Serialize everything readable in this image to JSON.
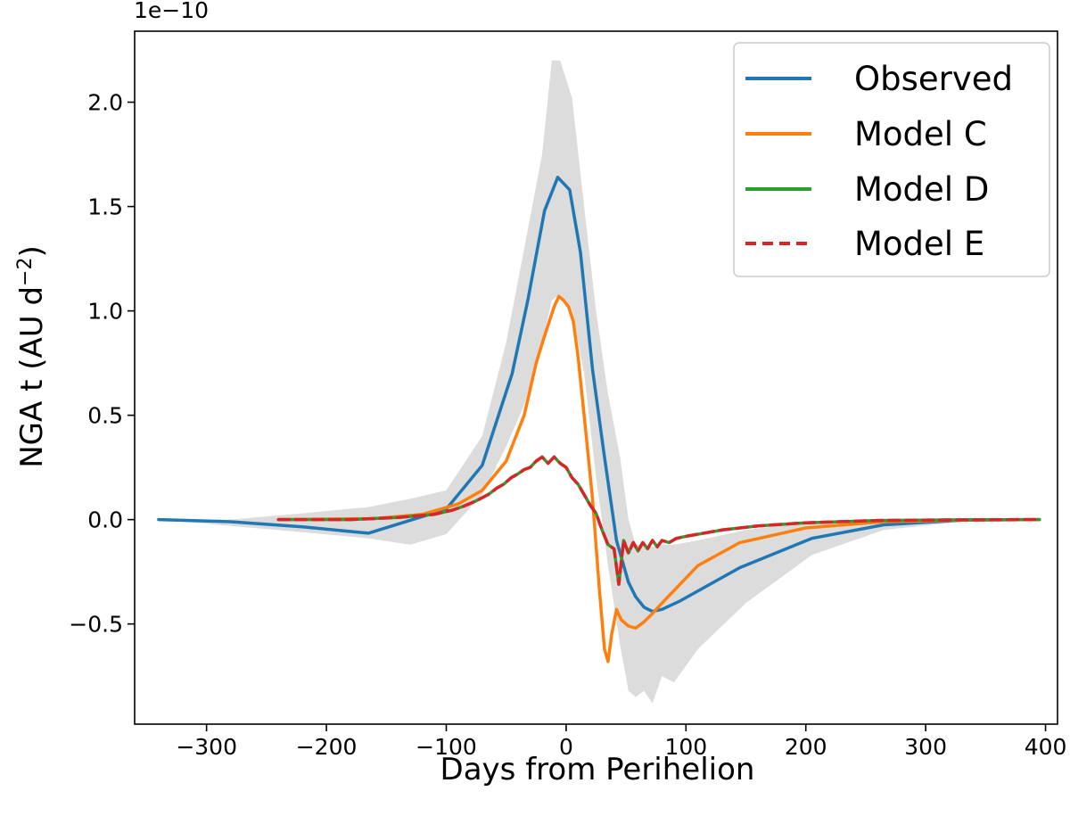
{
  "chart_data": {
    "type": "line",
    "title": "",
    "xlabel": "Days from Perihelion",
    "ylabel": "NGA t (AU d",
    "ylabel_exponent": "−2",
    "ylabel_close": ")",
    "y_scale_label": "1e−10",
    "xlim": [
      -360,
      410
    ],
    "ylim": [
      -0.98,
      2.34
    ],
    "x_ticks": [
      -300,
      -200,
      -100,
      0,
      100,
      200,
      300,
      400
    ],
    "x_tick_labels": [
      "−300",
      "−200",
      "−100",
      "0",
      "100",
      "200",
      "300",
      "400"
    ],
    "y_ticks": [
      -0.5,
      0.0,
      0.5,
      1.0,
      1.5,
      2.0
    ],
    "y_tick_labels": [
      "−0.5",
      "0.0",
      "0.5",
      "1.0",
      "1.5",
      "2.0"
    ],
    "grid": false,
    "legend_position": "top-right",
    "uncertainty_band": {
      "color": "#dcdcdc",
      "x": [
        -340,
        -280,
        -220,
        -165,
        -130,
        -100,
        -70,
        -50,
        -35,
        -20,
        -12,
        -5,
        5,
        15,
        25,
        35,
        45,
        52,
        58,
        65,
        72,
        80,
        90,
        110,
        150,
        205,
        265,
        330,
        395
      ],
      "upper": [
        0,
        0.0,
        0.03,
        0.06,
        0.1,
        0.14,
        0.4,
        0.85,
        1.3,
        1.75,
        2.2,
        2.2,
        2.02,
        1.5,
        1.0,
        0.6,
        0.3,
        0.0,
        -0.12,
        -0.12,
        -0.13,
        -0.12,
        -0.12,
        -0.1,
        -0.05,
        -0.01,
        0.0,
        0.0,
        0.0
      ],
      "lower": [
        0,
        -0.03,
        -0.06,
        -0.09,
        -0.12,
        -0.07,
        0.12,
        0.35,
        0.55,
        0.85,
        1.05,
        1.08,
        1.0,
        0.7,
        0.2,
        -0.22,
        -0.6,
        -0.82,
        -0.85,
        -0.82,
        -0.88,
        -0.75,
        -0.78,
        -0.62,
        -0.4,
        -0.17,
        -0.05,
        -0.01,
        0.0
      ]
    },
    "series": [
      {
        "name": "Observed",
        "color": "#1f77b4",
        "dash": "solid",
        "x": [
          -340,
          -280,
          -220,
          -165,
          -100,
          -70,
          -45,
          -32,
          -18,
          -7,
          3,
          12,
          22,
          32,
          42,
          52,
          58,
          65,
          72,
          80,
          95,
          145,
          205,
          265,
          330,
          395
        ],
        "y": [
          0.0,
          -0.01,
          -0.035,
          -0.065,
          0.05,
          0.26,
          0.7,
          1.05,
          1.48,
          1.64,
          1.58,
          1.28,
          0.72,
          0.3,
          -0.1,
          -0.3,
          -0.37,
          -0.42,
          -0.44,
          -0.43,
          -0.39,
          -0.23,
          -0.09,
          -0.025,
          -0.003,
          0.0
        ]
      },
      {
        "name": "Model C",
        "color": "#ff7f0e",
        "dash": "solid",
        "x": [
          -240,
          -160,
          -120,
          -90,
          -70,
          -50,
          -35,
          -25,
          -18,
          -14,
          -10,
          -6,
          -2,
          2,
          6,
          10,
          15,
          22,
          28,
          32,
          35,
          38,
          42,
          46,
          52,
          58,
          65,
          72,
          80,
          90,
          110,
          145,
          200,
          265,
          330,
          395
        ],
        "y": [
          0.0,
          0.005,
          0.025,
          0.075,
          0.14,
          0.28,
          0.5,
          0.75,
          0.88,
          0.95,
          1.02,
          1.07,
          1.05,
          1.02,
          0.95,
          0.78,
          0.5,
          0.1,
          -0.35,
          -0.62,
          -0.68,
          -0.55,
          -0.43,
          -0.48,
          -0.51,
          -0.52,
          -0.49,
          -0.45,
          -0.4,
          -0.34,
          -0.22,
          -0.11,
          -0.04,
          -0.01,
          -0.002,
          0.0
        ]
      },
      {
        "name": "Model D",
        "color": "#2ca02c",
        "dash": "solid",
        "x": [
          -240,
          -180,
          -140,
          -110,
          -95,
          -85,
          -75,
          -65,
          -58,
          -52,
          -46,
          -40,
          -35,
          -30,
          -25,
          -20,
          -15,
          -10,
          -5,
          0,
          5,
          10,
          15,
          20,
          25,
          30,
          35,
          40,
          44,
          48,
          52,
          56,
          60,
          64,
          68,
          72,
          76,
          80,
          86,
          92,
          100,
          110,
          130,
          160,
          200,
          260,
          330,
          395
        ],
        "y": [
          0.0,
          0.0,
          0.01,
          0.025,
          0.045,
          0.065,
          0.09,
          0.12,
          0.15,
          0.17,
          0.2,
          0.22,
          0.24,
          0.25,
          0.28,
          0.3,
          0.27,
          0.3,
          0.27,
          0.25,
          0.2,
          0.17,
          0.12,
          0.07,
          0.03,
          -0.05,
          -0.12,
          -0.14,
          -0.31,
          -0.1,
          -0.16,
          -0.11,
          -0.15,
          -0.11,
          -0.14,
          -0.1,
          -0.13,
          -0.1,
          -0.11,
          -0.09,
          -0.08,
          -0.07,
          -0.05,
          -0.03,
          -0.015,
          -0.004,
          -0.001,
          0.0
        ]
      },
      {
        "name": "Model E",
        "color": "#d62728",
        "dash": "dashed",
        "x": [
          -240,
          -180,
          -140,
          -110,
          -95,
          -85,
          -75,
          -65,
          -58,
          -52,
          -46,
          -40,
          -35,
          -30,
          -25,
          -20,
          -15,
          -10,
          -5,
          0,
          5,
          10,
          15,
          20,
          25,
          30,
          35,
          40,
          44,
          48,
          52,
          56,
          60,
          64,
          68,
          72,
          76,
          80,
          86,
          92,
          100,
          110,
          130,
          160,
          200,
          260,
          330,
          395
        ],
        "y": [
          0.0,
          0.0,
          0.01,
          0.025,
          0.045,
          0.065,
          0.09,
          0.12,
          0.15,
          0.17,
          0.2,
          0.22,
          0.24,
          0.25,
          0.28,
          0.3,
          0.27,
          0.3,
          0.27,
          0.25,
          0.2,
          0.17,
          0.12,
          0.07,
          0.03,
          -0.05,
          -0.12,
          -0.14,
          -0.31,
          -0.1,
          -0.16,
          -0.11,
          -0.15,
          -0.11,
          -0.14,
          -0.1,
          -0.13,
          -0.1,
          -0.11,
          -0.09,
          -0.08,
          -0.07,
          -0.05,
          -0.03,
          -0.015,
          -0.004,
          -0.001,
          0.0
        ]
      }
    ]
  }
}
